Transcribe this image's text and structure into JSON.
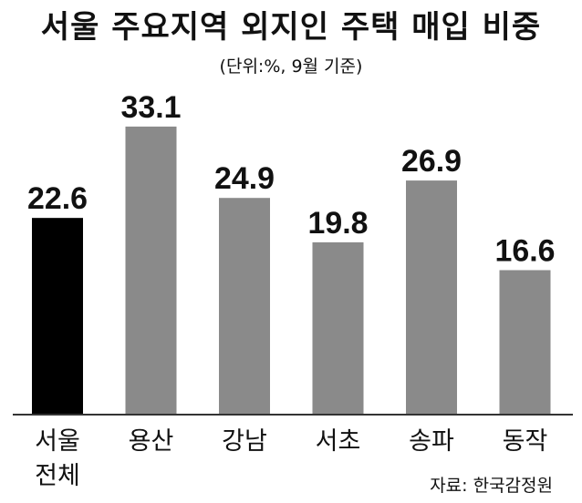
{
  "chart_data": {
    "type": "bar",
    "title": "서울 주요지역 외지인 주택 매입 비중",
    "subtitle": "(단위:%, 9월 기준)",
    "categories": [
      [
        "서울",
        "전체"
      ],
      [
        "용산"
      ],
      [
        "강남"
      ],
      [
        "서초"
      ],
      [
        "송파"
      ],
      [
        "동작"
      ]
    ],
    "values": [
      22.6,
      33.1,
      24.9,
      19.8,
      26.9,
      16.6
    ],
    "value_labels": [
      "22.6",
      "33.1",
      "24.9",
      "19.8",
      "26.9",
      "16.6"
    ],
    "colors": [
      "#000000",
      "#8a8a8a",
      "#8a8a8a",
      "#8a8a8a",
      "#8a8a8a",
      "#8a8a8a"
    ],
    "axis_color": "#333333",
    "grid": false,
    "legend": "none"
  },
  "source": "자료: 한국감정원"
}
